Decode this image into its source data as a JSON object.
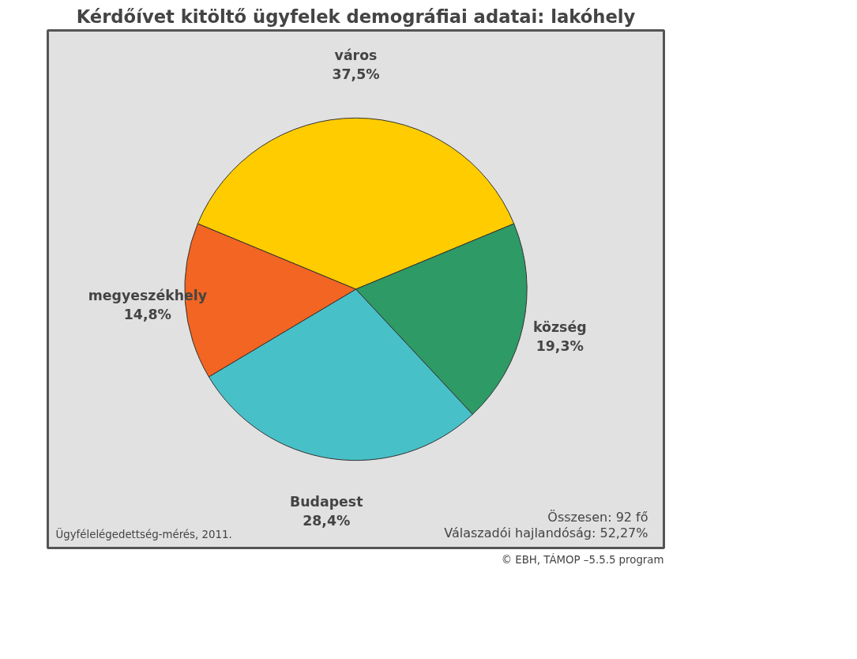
{
  "chart_data": {
    "type": "pie",
    "title": "Kérdőívet kitöltő ügyfelek demográfiai adatai: lakóhely",
    "categories": [
      "város",
      "község",
      "Budapest",
      "megyeszékhely"
    ],
    "values": [
      37.5,
      19.3,
      28.4,
      14.8
    ],
    "colors": [
      "#ffcc00",
      "#2e9a65",
      "#48c0c8",
      "#f26522"
    ],
    "value_labels": [
      "37,5%",
      "19,3%",
      "28,4%",
      "14,8%"
    ],
    "legend": false,
    "annotations": [
      "Ügyfélelégedettség-mérés, 2011.",
      "Összesen: 92 fő",
      "Válaszadói hajlandóság: 52,27%",
      "© EBH, TÁMOP –5.5.5 program"
    ]
  }
}
